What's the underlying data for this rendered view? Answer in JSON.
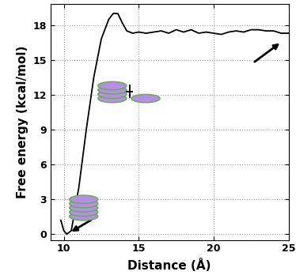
{
  "chart_data": {
    "type": "line",
    "x_label": "Distance (Å)",
    "y_label": "Free energy (kcal/mol)",
    "x": [
      9.8,
      10.0,
      10.2,
      10.5,
      11.0,
      11.5,
      12.0,
      12.5,
      13.0,
      13.3,
      13.6,
      13.9,
      14.2,
      14.6,
      15.0,
      15.5,
      16.0,
      16.5,
      17.0,
      17.5,
      18.0,
      18.5,
      19.0,
      19.5,
      20.0,
      20.5,
      21.0,
      21.5,
      22.0,
      22.5,
      23.0,
      23.5,
      24.0,
      24.5,
      25.0
    ],
    "values": [
      1.2,
      0.3,
      0.0,
      0.3,
      4.0,
      9.0,
      13.5,
      16.8,
      18.5,
      19.0,
      19.0,
      18.2,
      17.5,
      17.3,
      17.4,
      17.3,
      17.4,
      17.5,
      17.3,
      17.6,
      17.4,
      17.6,
      17.3,
      17.4,
      17.3,
      17.2,
      17.4,
      17.5,
      17.4,
      17.6,
      17.6,
      17.5,
      17.5,
      17.3,
      17.3
    ],
    "color": "#000000",
    "xlim": [
      9.1,
      25
    ],
    "xticks": [
      10,
      15,
      20,
      25
    ],
    "ylim": [
      -0.5,
      19.8
    ],
    "yticks": [
      0,
      3,
      6,
      9,
      12,
      15,
      18
    ],
    "grid": true
  }
}
